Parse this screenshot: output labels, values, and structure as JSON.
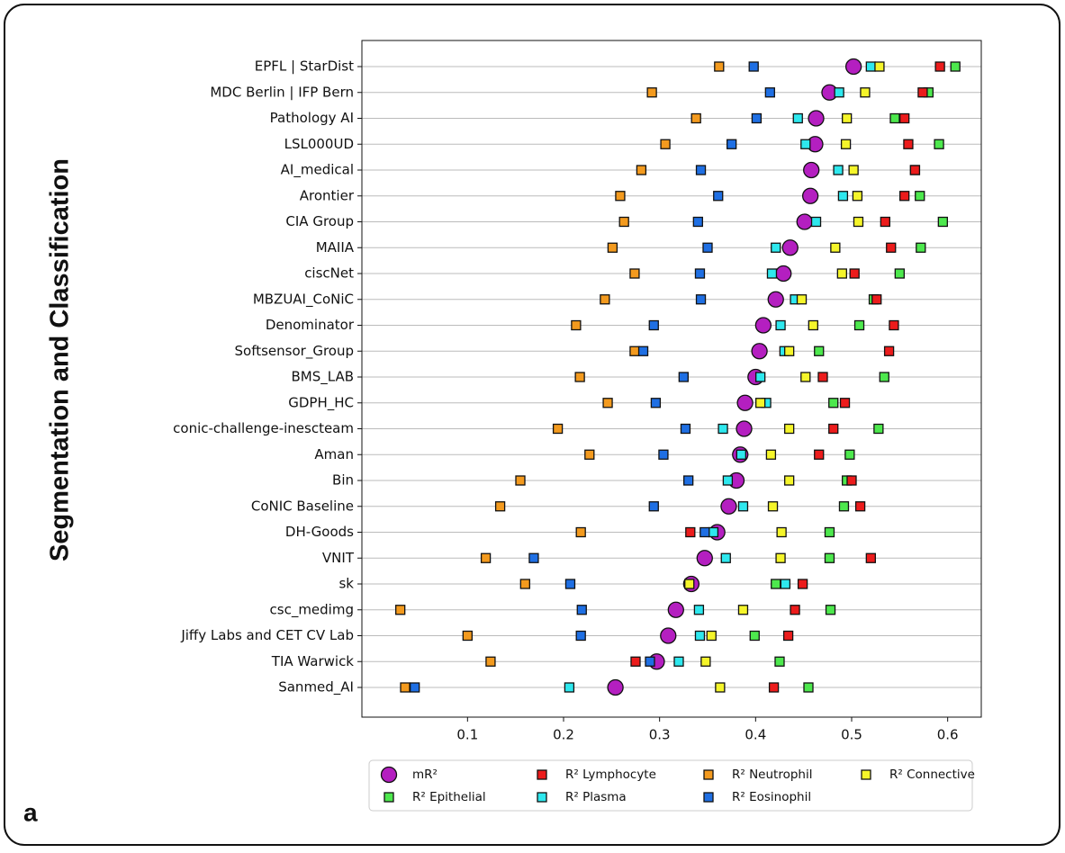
{
  "chart_data": {
    "type": "dot",
    "ylabel": "Segmentation and Classification",
    "panel_label": "a",
    "categories": [
      "EPFL | StarDist",
      "MDC Berlin | IFP Bern",
      "Pathology AI",
      "LSL000UD",
      "AI_medical",
      "Arontier",
      "CIA Group",
      "MAIIA",
      "ciscNet",
      "MBZUAI_CoNiC",
      "Denominator",
      "Softsensor_Group",
      "BMS_LAB",
      "GDPH_HC",
      "conic-challenge-inescteam",
      "Aman",
      "Bin",
      "CoNIC Baseline",
      "DH-Goods",
      "VNIT",
      "sk",
      "csc_medimg",
      "Jiffy Labs and CET CV Lab",
      "TIA Warwick",
      "Sanmed_AI"
    ],
    "series": [
      {
        "name": "mR²",
        "color": "#b41fc0",
        "marker": "circle",
        "values": [
          0.502,
          0.477,
          0.463,
          0.462,
          0.458,
          0.457,
          0.451,
          0.436,
          0.429,
          0.421,
          0.408,
          0.404,
          0.4,
          0.389,
          0.388,
          0.384,
          0.38,
          0.372,
          0.36,
          0.347,
          0.333,
          0.317,
          0.309,
          0.297,
          0.254
        ]
      },
      {
        "name": "R² Epithelial",
        "color": "#4de84d",
        "marker": "square",
        "values": [
          0.608,
          0.58,
          0.545,
          0.591,
          0.566,
          0.571,
          0.595,
          0.572,
          0.55,
          0.523,
          0.508,
          0.466,
          0.534,
          0.481,
          0.528,
          0.498,
          0.495,
          0.492,
          0.477,
          0.477,
          0.421,
          0.478,
          0.399,
          0.425,
          0.455
        ]
      },
      {
        "name": "R² Lymphocyte",
        "color": "#ec1c1c",
        "marker": "square",
        "values": [
          0.592,
          0.574,
          0.555,
          0.559,
          0.566,
          0.555,
          0.535,
          0.541,
          0.503,
          0.526,
          0.544,
          0.539,
          0.47,
          0.493,
          0.481,
          0.466,
          0.5,
          0.509,
          0.332,
          0.52,
          0.449,
          0.441,
          0.434,
          0.275,
          0.419
        ]
      },
      {
        "name": "R² Plasma",
        "color": "#2ee8ee",
        "marker": "square",
        "values": [
          0.52,
          0.487,
          0.444,
          0.452,
          0.486,
          0.491,
          0.463,
          0.421,
          0.417,
          0.441,
          0.426,
          0.43,
          0.405,
          0.411,
          0.366,
          0.385,
          0.371,
          0.387,
          0.356,
          0.369,
          0.431,
          0.341,
          0.342,
          0.32,
          0.206
        ]
      },
      {
        "name": "R² Neutrophil",
        "color": "#f39a1e",
        "marker": "square",
        "values": [
          0.362,
          0.292,
          0.338,
          0.306,
          0.281,
          0.259,
          0.263,
          0.251,
          0.274,
          0.243,
          0.213,
          0.274,
          0.217,
          0.246,
          0.194,
          0.227,
          0.155,
          0.134,
          0.218,
          0.119,
          0.16,
          0.03,
          0.1,
          0.124,
          0.035
        ]
      },
      {
        "name": "R² Eosinophil",
        "color": "#1f6fe3",
        "marker": "square",
        "values": [
          0.398,
          0.415,
          0.401,
          0.375,
          0.343,
          0.361,
          0.34,
          0.35,
          0.342,
          0.343,
          0.294,
          0.283,
          0.325,
          0.296,
          0.327,
          0.304,
          0.33,
          0.294,
          0.347,
          0.169,
          0.207,
          0.219,
          0.218,
          0.29,
          0.045
        ]
      },
      {
        "name": "R² Connective",
        "color": "#f5f52a",
        "marker": "square",
        "values": [
          0.529,
          0.514,
          0.495,
          0.494,
          0.502,
          0.506,
          0.507,
          0.483,
          0.49,
          0.448,
          0.46,
          0.435,
          0.452,
          0.405,
          0.435,
          0.416,
          0.435,
          0.418,
          0.427,
          0.426,
          0.331,
          0.387,
          0.354,
          0.348,
          0.363
        ]
      }
    ],
    "xlim": [
      -0.01,
      0.635
    ],
    "xticks": [
      0.1,
      0.2,
      0.3,
      0.4,
      0.5,
      0.6
    ],
    "grid": true
  }
}
